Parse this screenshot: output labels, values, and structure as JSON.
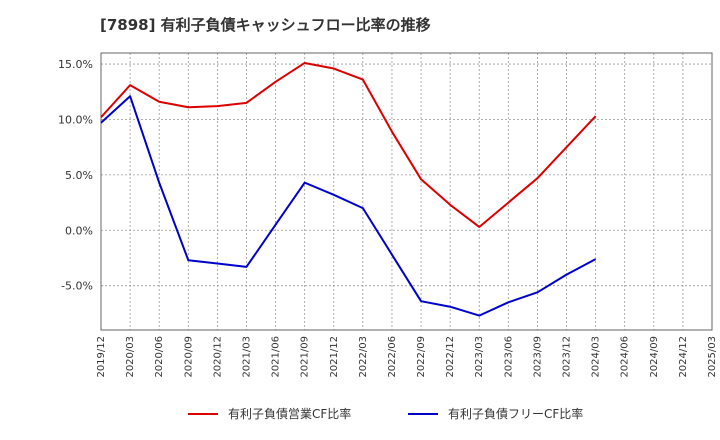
{
  "chart_data": {
    "type": "line",
    "title": "[7898]  有利子負債キャッシュフロー比率の推移",
    "x": [
      "2019/12",
      "2020/03",
      "2020/06",
      "2020/09",
      "2020/12",
      "2021/03",
      "2021/06",
      "2021/09",
      "2021/12",
      "2022/03",
      "2022/06",
      "2022/09",
      "2022/12",
      "2023/03",
      "2023/06",
      "2023/09",
      "2023/12",
      "2024/03",
      "2024/06",
      "2024/09",
      "2024/12",
      "2025/03"
    ],
    "y_ticks": [
      "15.0%",
      "10.0%",
      "5.0%",
      "0.0%",
      "-5.0%"
    ],
    "ylim": [
      -9,
      16
    ],
    "grid": true,
    "legend_position": "bottom",
    "series": [
      {
        "name": "有利子負債営業CF比率",
        "color": "#dd0000",
        "values": [
          10.2,
          13.1,
          11.6,
          11.1,
          11.2,
          11.5,
          13.4,
          15.1,
          14.6,
          13.6,
          8.9,
          4.6,
          2.3,
          0.3,
          2.5,
          4.7,
          7.5,
          10.3,
          null,
          null,
          null,
          null
        ]
      },
      {
        "name": "有利子負債フリーCF比率",
        "color": "#0000cc",
        "values": [
          9.7,
          12.1,
          4.3,
          -2.7,
          -3.0,
          -3.3,
          0.5,
          4.3,
          3.2,
          2.0,
          -2.2,
          -6.4,
          -6.9,
          -7.7,
          -6.5,
          -5.6,
          -4.0,
          -2.6,
          null,
          null,
          null,
          null
        ]
      }
    ]
  }
}
